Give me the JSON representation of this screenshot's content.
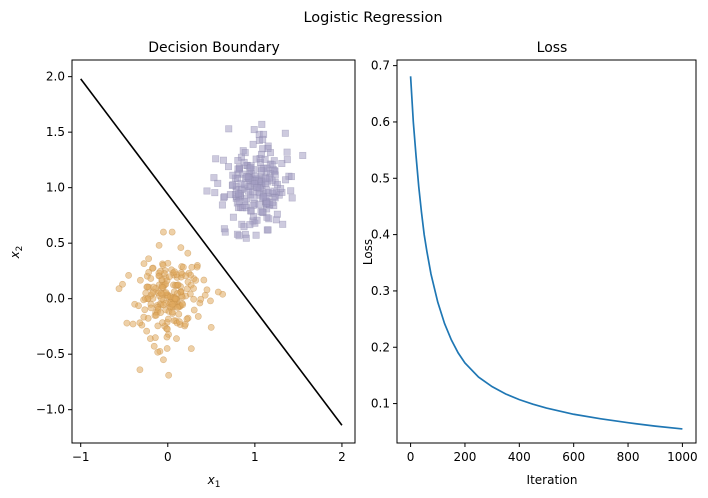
{
  "suptitle": "Logistic Regression",
  "chart_data": [
    {
      "type": "scatter",
      "title": "Decision Boundary",
      "xlabel": "x",
      "xlabel_sub": "1",
      "ylabel": "x",
      "ylabel_sub": "2",
      "xlim": [
        -1.1,
        2.15
      ],
      "ylim": [
        -1.3,
        2.15
      ],
      "xticks": [
        -1,
        0,
        1,
        2
      ],
      "yticks": [
        -1.0,
        -0.5,
        0.0,
        0.5,
        1.0,
        1.5,
        2.0
      ],
      "grid": false,
      "series": [
        {
          "marker": "circle",
          "color": "#e0a95e",
          "center": [
            0.0,
            0.0
          ],
          "points": [
            [
              -0.32,
              -0.64
            ],
            [
              0.01,
              -0.69
            ],
            [
              -0.05,
              -0.55
            ],
            [
              0.27,
              -0.45
            ],
            [
              0.1,
              -0.36
            ],
            [
              -0.2,
              -0.36
            ],
            [
              -0.47,
              -0.22
            ],
            [
              0.35,
              -0.16
            ],
            [
              0.49,
              -0.02
            ],
            [
              0.63,
              0.04
            ],
            [
              0.58,
              0.06
            ],
            [
              0.45,
              0.08
            ],
            [
              -0.45,
              0.21
            ],
            [
              -0.52,
              0.13
            ],
            [
              -0.56,
              0.09
            ],
            [
              0.34,
              0.3
            ],
            [
              0.23,
              0.41
            ],
            [
              -0.1,
              0.48
            ],
            [
              -0.05,
              0.6
            ],
            [
              0.05,
              0.6
            ],
            [
              0.15,
              0.46
            ],
            [
              -0.22,
              0.36
            ],
            [
              0.3,
              0.18
            ],
            [
              -0.38,
              -0.05
            ]
          ],
          "cloud": {
            "count": 175,
            "sx": 0.16,
            "sy": 0.17,
            "seed": 7
          }
        },
        {
          "marker": "square",
          "color": "#a49fc2",
          "center": [
            1.0,
            1.0
          ],
          "points": [
            [
              0.7,
              1.53
            ],
            [
              1.08,
              1.57
            ],
            [
              1.05,
              1.48
            ],
            [
              1.35,
              1.49
            ],
            [
              1.1,
              1.48
            ],
            [
              1.55,
              1.29
            ],
            [
              0.53,
              1.09
            ],
            [
              0.45,
              0.97
            ],
            [
              0.65,
              0.63
            ],
            [
              0.66,
              0.6
            ],
            [
              1.16,
              0.72
            ],
            [
              1.32,
              0.67
            ],
            [
              1.0,
              0.68
            ],
            [
              0.55,
              1.26
            ],
            [
              1.37,
              1.32
            ],
            [
              0.85,
              0.67
            ],
            [
              1.42,
              1.1
            ],
            [
              0.8,
              0.58
            ]
          ],
          "cloud": {
            "count": 180,
            "sx": 0.17,
            "sy": 0.17,
            "seed": 23
          }
        }
      ],
      "boundary": {
        "x": [
          -1.0,
          2.0
        ],
        "y": [
          1.98,
          -1.14
        ],
        "color": "#000000"
      }
    },
    {
      "type": "line",
      "title": "Loss",
      "xlabel": "Iteration",
      "ylabel": "Loss",
      "xlim": [
        -50,
        1050
      ],
      "ylim": [
        0.03,
        0.71
      ],
      "xticks": [
        0,
        200,
        400,
        600,
        800,
        1000
      ],
      "yticks": [
        0.1,
        0.2,
        0.3,
        0.4,
        0.5,
        0.6,
        0.7
      ],
      "grid": false,
      "series": [
        {
          "color": "#1f77b4",
          "x": [
            0,
            10,
            20,
            30,
            40,
            50,
            60,
            75,
            100,
            125,
            150,
            175,
            200,
            250,
            300,
            350,
            400,
            450,
            500,
            600,
            700,
            800,
            900,
            1000
          ],
          "y": [
            0.681,
            0.6,
            0.54,
            0.485,
            0.44,
            0.4,
            0.37,
            0.33,
            0.28,
            0.242,
            0.213,
            0.19,
            0.172,
            0.147,
            0.13,
            0.117,
            0.107,
            0.099,
            0.092,
            0.081,
            0.073,
            0.066,
            0.06,
            0.055
          ]
        }
      ]
    }
  ]
}
